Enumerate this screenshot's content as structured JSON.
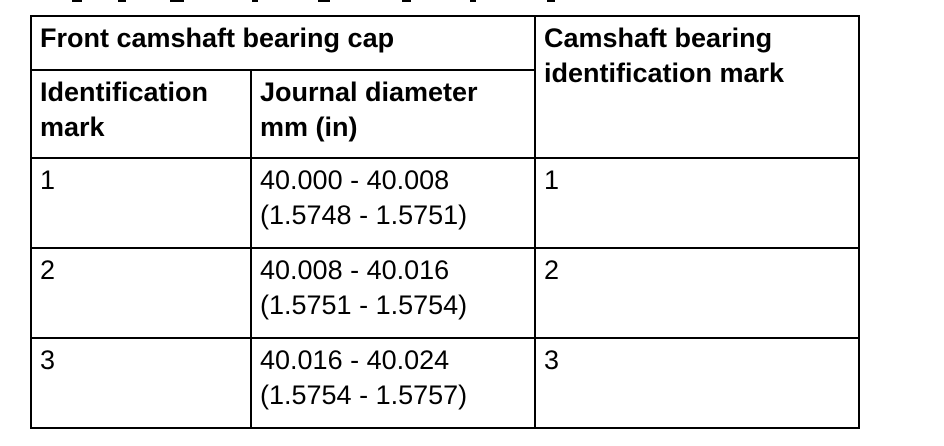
{
  "table": {
    "group_header": "Front camshaft bearing cap",
    "right_header": {
      "line1": "Camshaft bearing",
      "line2": "identification mark"
    },
    "col1_header": {
      "line1": "Identification",
      "line2": "mark"
    },
    "col2_header": {
      "line1": "Journal diameter",
      "line2": "mm (in)"
    },
    "rows": [
      {
        "id_mark": "1",
        "diameter_mm": "40.000 - 40.008",
        "diameter_in": "(1.5748 - 1.5751)",
        "bearing_mark": "1"
      },
      {
        "id_mark": "2",
        "diameter_mm": "40.008 - 40.016",
        "diameter_in": "(1.5751 - 1.5754)",
        "bearing_mark": "2"
      },
      {
        "id_mark": "3",
        "diameter_mm": "40.016 - 40.024",
        "diameter_in": "(1.5754 - 1.5757)",
        "bearing_mark": "3"
      }
    ]
  }
}
